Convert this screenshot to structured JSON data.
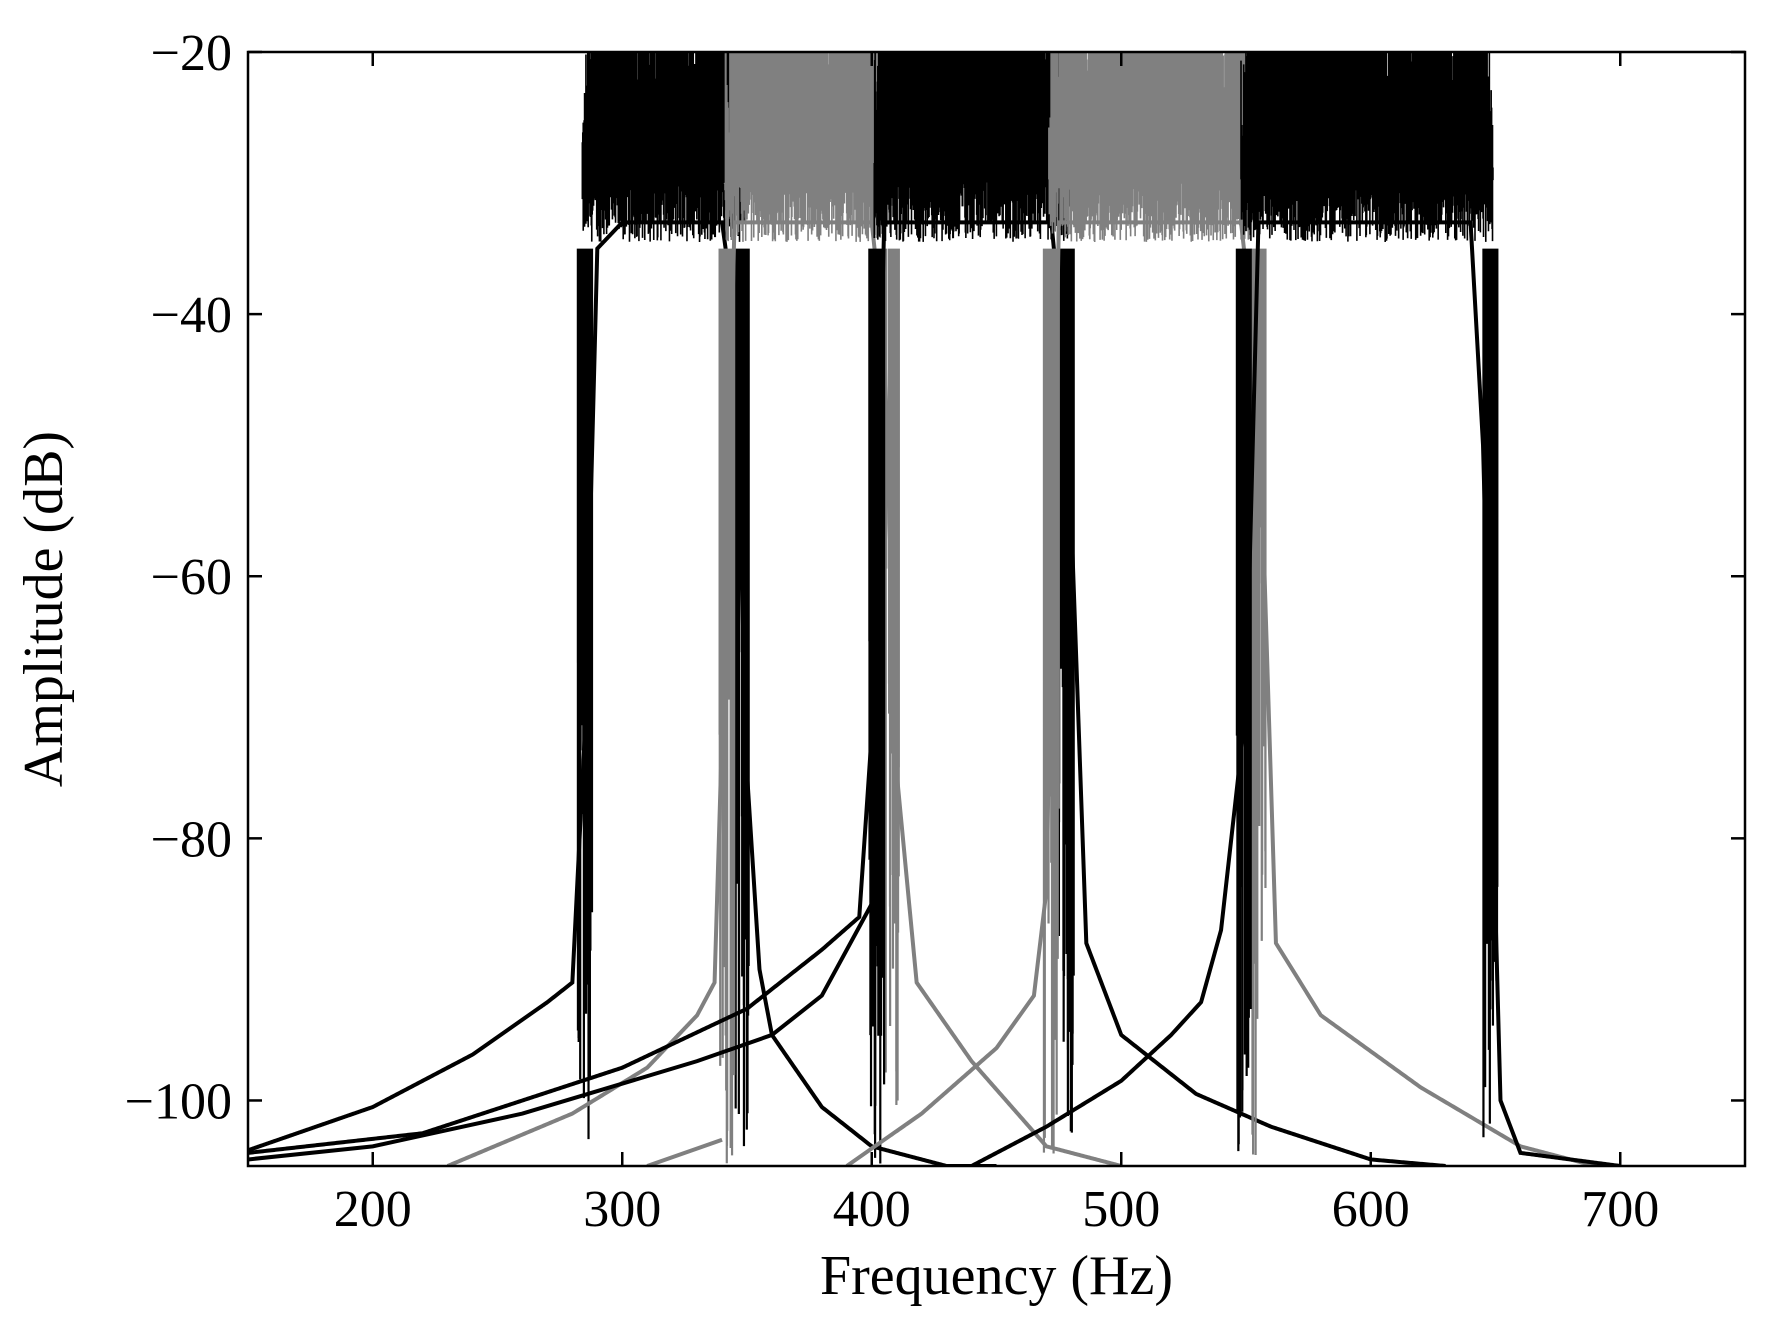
{
  "chart_data": {
    "type": "line",
    "title": "",
    "xlabel": "Frequency (Hz)",
    "ylabel": "Amplitude (dB)",
    "xlim": [
      150,
      750
    ],
    "ylim": [
      -105,
      -20
    ],
    "x_ticks": [
      200,
      300,
      400,
      500,
      600,
      700
    ],
    "y_ticks": [
      -20,
      -40,
      -60,
      -80,
      -100
    ],
    "x_tick_labels": [
      "200",
      "300",
      "400",
      "500",
      "600",
      "700"
    ],
    "y_tick_labels": [
      "−20",
      "−40",
      "−60",
      "−80",
      "−100"
    ],
    "grid": false,
    "legend": "none",
    "tick_direction": "in",
    "series_colors": [
      "#000000",
      "#808080",
      "#000000",
      "#808080",
      "#000000"
    ],
    "series": [
      {
        "color": "#000000",
        "band": [
          288,
          345
        ],
        "x": [
          150,
          200,
          240,
          270,
          280,
          285,
          290,
          300,
          320,
          340,
          345,
          350,
          355,
          360,
          380,
          400,
          430,
          450
        ],
        "y": [
          -103.8,
          -100.5,
          -96.5,
          -92.5,
          -91,
          -72,
          -35,
          -33,
          -33,
          -33,
          -40,
          -75,
          -90,
          -95,
          -100.5,
          -103.5,
          -105,
          -105
        ]
      },
      {
        "color": "#808080",
        "band": [
          345,
          405
        ],
        "x": [
          230,
          280,
          310,
          330,
          337,
          340,
          345,
          360,
          380,
          400,
          405,
          410,
          418,
          440,
          470,
          500
        ],
        "y": [
          -105,
          -101,
          -97.5,
          -93.5,
          -91,
          -72,
          -33,
          -33,
          -33,
          -33,
          -42,
          -75,
          -91,
          -97,
          -103.5,
          -105
        ],
        "low_tail_x": [
          310,
          340
        ],
        "low_tail_y": [
          -105,
          -103
        ]
      },
      {
        "color": "#000000",
        "band": [
          405,
          475
        ],
        "x": [
          150,
          220,
          300,
          350,
          380,
          395,
          400,
          405,
          420,
          450,
          472,
          478,
          486,
          500,
          530,
          560,
          600,
          630
        ],
        "y": [
          -104,
          -102.5,
          -97.5,
          -93,
          -88.5,
          -86,
          -72,
          -33,
          -33,
          -33,
          -33,
          -45,
          -88,
          -95,
          -99.5,
          -102,
          -104.5,
          -105
        ],
        "low_tail_x": [
          150,
          200,
          260,
          330,
          360,
          380,
          400
        ],
        "low_tail_y": [
          -104.5,
          -103.5,
          -101,
          -97,
          -95,
          -92,
          -85
        ]
      },
      {
        "color": "#808080",
        "band": [
          475,
          552
        ],
        "x": [
          390,
          420,
          450,
          465,
          470,
          475,
          490,
          520,
          548,
          555,
          562,
          580,
          620,
          660,
          690
        ],
        "y": [
          -105,
          -101,
          -96,
          -92,
          -84,
          -33,
          -33,
          -33,
          -33,
          -45,
          -88,
          -93.5,
          -99,
          -103.5,
          -105
        ]
      },
      {
        "color": "#000000",
        "band": [
          552,
          645
        ],
        "x": [
          440,
          470,
          500,
          520,
          532,
          540,
          550,
          555,
          580,
          610,
          640,
          645,
          652,
          660,
          680,
          700
        ],
        "y": [
          -105,
          -102,
          -98.5,
          -95,
          -92.5,
          -87,
          -70,
          -33,
          -33,
          -33,
          -33,
          -50,
          -100,
          -104,
          -104.5,
          -105
        ]
      }
    ]
  }
}
